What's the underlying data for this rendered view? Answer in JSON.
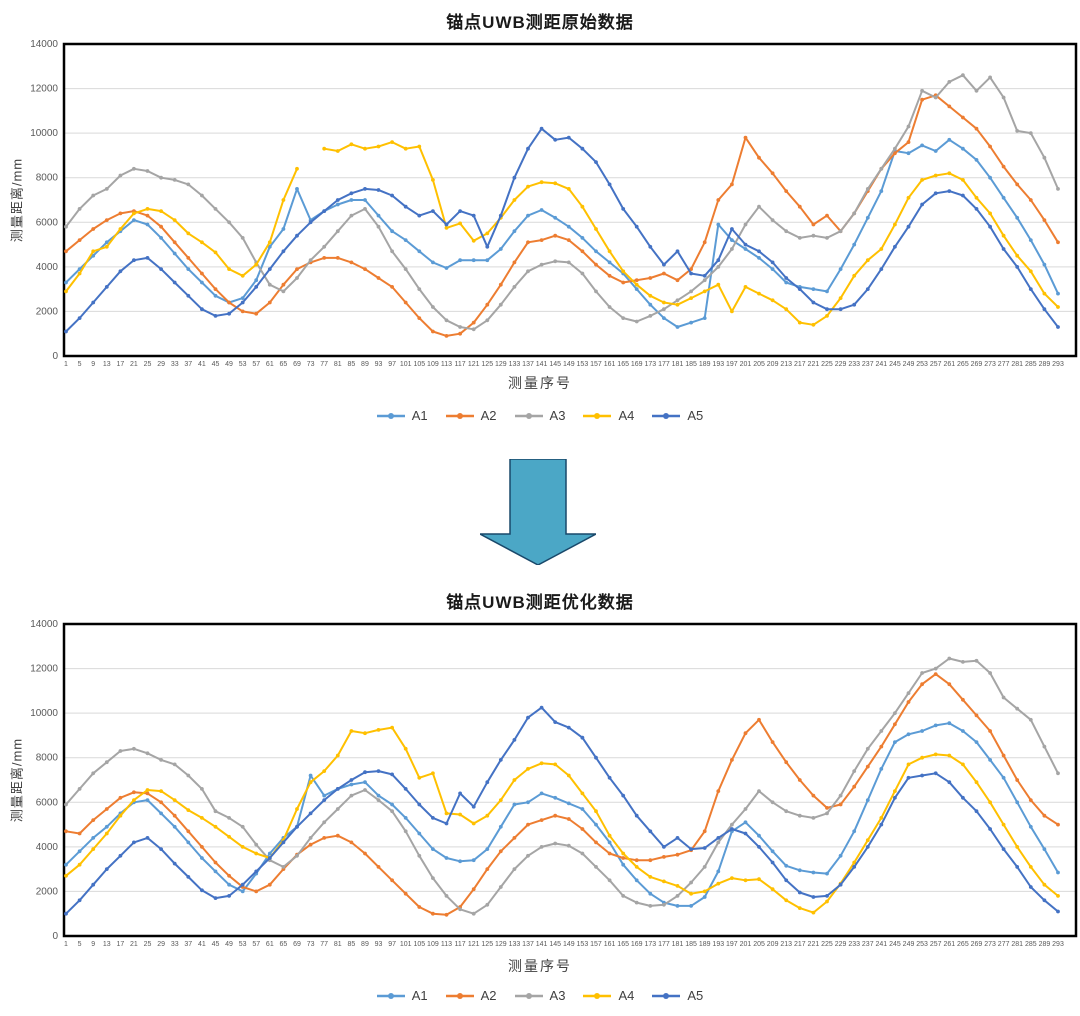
{
  "arrow": {
    "meaning": "down-arrow",
    "fill": "#4BA7C6",
    "stroke": "#19486A"
  },
  "chart_data": [
    {
      "type": "line",
      "title": "锚点UWB测距原始数据",
      "xlabel": "测量序号",
      "ylabel": "测量距离/mm",
      "ylim": [
        0,
        14000
      ],
      "y_ticks": [
        0,
        2000,
        4000,
        6000,
        8000,
        10000,
        12000,
        14000
      ],
      "x_ticks": [
        1,
        5,
        9,
        13,
        17,
        21,
        25,
        29,
        33,
        37,
        41,
        45,
        49,
        53,
        57,
        61,
        65,
        69,
        73,
        77,
        81,
        85,
        89,
        93,
        97,
        101,
        105,
        109,
        113,
        117,
        121,
        125,
        129,
        133,
        137,
        141,
        145,
        149,
        153,
        157,
        161,
        165,
        169,
        173,
        177,
        181,
        185,
        189,
        193,
        197,
        201,
        205,
        209,
        213,
        217,
        221,
        225,
        229,
        233,
        237,
        241,
        245,
        249,
        253,
        257,
        261,
        265,
        269,
        273,
        277,
        281,
        285,
        289,
        293
      ],
      "grid": true,
      "legend_position": "bottom",
      "series": [
        {
          "name": "A1",
          "color": "#5B9BD5",
          "values": [
            3300,
            3900,
            4500,
            5100,
            5600,
            6100,
            5900,
            5300,
            4600,
            3900,
            3300,
            2700,
            2400,
            2600,
            3400,
            4900,
            5700,
            7500,
            6100,
            6500,
            6800,
            7000,
            7000,
            6300,
            5600,
            5200,
            4700,
            4200,
            3950,
            4300,
            4300,
            4300,
            4800,
            5600,
            6300,
            6550,
            6200,
            5800,
            5300,
            4700,
            4200,
            3700,
            3000,
            2300,
            1700,
            1300,
            1500,
            1700,
            5900,
            5200,
            4800,
            4400,
            3900,
            3300,
            3100,
            3000,
            2900,
            3900,
            5000,
            6200,
            7400,
            9200,
            9100,
            9450,
            9200,
            9700,
            9300,
            8800,
            8000,
            7100,
            6200,
            5200,
            4100,
            2800
          ]
        },
        {
          "name": "A2",
          "color": "#ED7D31",
          "values": [
            4700,
            5200,
            5700,
            6100,
            6400,
            6500,
            6300,
            5800,
            5100,
            4400,
            3700,
            3000,
            2400,
            2000,
            1900,
            2400,
            3200,
            3900,
            4200,
            4400,
            4400,
            4200,
            3900,
            3500,
            3100,
            2400,
            1700,
            1100,
            900,
            1000,
            1500,
            2300,
            3200,
            4200,
            5100,
            5200,
            5400,
            5200,
            4700,
            4100,
            3600,
            3300,
            3400,
            3500,
            3700,
            3400,
            3900,
            5100,
            7000,
            7700,
            9800,
            8900,
            8200,
            7400,
            6700,
            5900,
            6300,
            5600,
            6400,
            7400,
            8400,
            9100,
            9600,
            11500,
            11700,
            11200,
            10700,
            10200,
            9400,
            8500,
            7700,
            7000,
            6100,
            5100
          ]
        },
        {
          "name": "A3",
          "color": "#A5A5A5",
          "values": [
            5800,
            6600,
            7200,
            7500,
            8100,
            8400,
            8300,
            8000,
            7900,
            7700,
            7200,
            6600,
            6000,
            5300,
            4200,
            3200,
            2900,
            3500,
            4300,
            4900,
            5600,
            6300,
            6600,
            5800,
            4700,
            3900,
            3000,
            2200,
            1600,
            1300,
            1200,
            1600,
            2300,
            3100,
            3800,
            4100,
            4250,
            4200,
            3700,
            2900,
            2200,
            1700,
            1550,
            1800,
            2100,
            2500,
            2900,
            3400,
            4000,
            4800,
            5900,
            6700,
            6100,
            5600,
            5300,
            5400,
            5300,
            5600,
            6400,
            7500,
            8400,
            9300,
            10300,
            11900,
            11600,
            12300,
            12600,
            11900,
            12500,
            11600,
            10100,
            10000,
            8900,
            7500
          ]
        },
        {
          "name": "A4",
          "color": "#FFC000",
          "values": [
            2900,
            3700,
            4700,
            4900,
            5700,
            6400,
            6600,
            6500,
            6100,
            5500,
            5100,
            4650,
            3900,
            3600,
            4100,
            5100,
            7000,
            8400,
            null,
            9300,
            9200,
            9500,
            9300,
            9400,
            9600,
            9300,
            9400,
            7900,
            5750,
            5950,
            5170,
            5500,
            6200,
            7000,
            7600,
            7800,
            7750,
            7500,
            6700,
            5700,
            4700,
            3800,
            3200,
            2700,
            2400,
            2300,
            2600,
            2900,
            3200,
            2000,
            3100,
            2800,
            2500,
            2100,
            1500,
            1400,
            1800,
            2600,
            3600,
            4300,
            4800,
            5900,
            7100,
            7900,
            8100,
            8200,
            7900,
            7100,
            6400,
            5400,
            4500,
            3800,
            2800,
            2200
          ]
        },
        {
          "name": "A5",
          "color": "#4472C4",
          "values": [
            1100,
            1700,
            2400,
            3100,
            3800,
            4300,
            4400,
            3900,
            3300,
            2700,
            2100,
            1800,
            1900,
            2400,
            3100,
            3900,
            4700,
            5400,
            6000,
            6500,
            7000,
            7300,
            7500,
            7450,
            7200,
            6700,
            6300,
            6500,
            5900,
            6500,
            6300,
            4900,
            6300,
            8000,
            9300,
            10200,
            9700,
            9800,
            9300,
            8700,
            7700,
            6600,
            5800,
            4900,
            4100,
            4700,
            3700,
            3600,
            4300,
            5700,
            5000,
            4700,
            4200,
            3500,
            3000,
            2400,
            2100,
            2100,
            2300,
            3000,
            3900,
            4900,
            5800,
            6800,
            7300,
            7400,
            7200,
            6600,
            5800,
            4800,
            4000,
            3000,
            2100,
            1300
          ]
        }
      ]
    },
    {
      "type": "line",
      "title": "锚点UWB测距优化数据",
      "xlabel": "测量序号",
      "ylabel": "测量距离/mm",
      "ylim": [
        0,
        14000
      ],
      "y_ticks": [
        0,
        2000,
        4000,
        6000,
        8000,
        10000,
        12000,
        14000
      ],
      "x_ticks": [
        1,
        5,
        9,
        13,
        17,
        21,
        25,
        29,
        33,
        37,
        41,
        45,
        49,
        53,
        57,
        61,
        65,
        69,
        73,
        77,
        81,
        85,
        89,
        93,
        97,
        101,
        105,
        109,
        113,
        117,
        121,
        125,
        129,
        133,
        137,
        141,
        145,
        149,
        153,
        157,
        161,
        165,
        169,
        173,
        177,
        181,
        185,
        189,
        193,
        197,
        201,
        205,
        209,
        213,
        217,
        221,
        225,
        229,
        233,
        237,
        241,
        245,
        249,
        253,
        257,
        261,
        265,
        269,
        273,
        277,
        281,
        285,
        289,
        293
      ],
      "grid": true,
      "legend_position": "bottom",
      "series": [
        {
          "name": "A1",
          "color": "#5B9BD5",
          "values": [
            3200,
            3800,
            4400,
            4900,
            5500,
            6000,
            6100,
            5500,
            4900,
            4200,
            3500,
            2900,
            2300,
            2000,
            2800,
            3700,
            4400,
            4900,
            7200,
            6300,
            6600,
            6800,
            6900,
            6300,
            5900,
            5300,
            4600,
            3900,
            3500,
            3350,
            3400,
            3900,
            4900,
            5900,
            6000,
            6400,
            6200,
            5950,
            5700,
            5000,
            4200,
            3200,
            2500,
            1900,
            1500,
            1350,
            1350,
            1750,
            2900,
            4700,
            5100,
            4500,
            3800,
            3150,
            2950,
            2850,
            2800,
            3600,
            4700,
            6100,
            7500,
            8700,
            9050,
            9200,
            9450,
            9550,
            9200,
            8700,
            7900,
            7100,
            6000,
            4900,
            3900,
            2850
          ]
        },
        {
          "name": "A2",
          "color": "#ED7D31",
          "values": [
            4700,
            4600,
            5200,
            5700,
            6200,
            6450,
            6400,
            6000,
            5400,
            4700,
            4000,
            3300,
            2700,
            2200,
            2000,
            2300,
            3000,
            3650,
            4100,
            4400,
            4500,
            4200,
            3700,
            3100,
            2500,
            1900,
            1300,
            1000,
            950,
            1300,
            2100,
            3000,
            3800,
            4400,
            5000,
            5200,
            5400,
            5250,
            4800,
            4200,
            3700,
            3500,
            3400,
            3400,
            3550,
            3650,
            3850,
            4700,
            6500,
            7900,
            9100,
            9700,
            8700,
            7800,
            7000,
            6300,
            5750,
            5900,
            6700,
            7600,
            8500,
            9500,
            10500,
            11300,
            11750,
            11300,
            10600,
            9900,
            9200,
            8100,
            7000,
            6100,
            5400,
            5000
          ]
        },
        {
          "name": "A3",
          "color": "#A5A5A5",
          "values": [
            5900,
            6600,
            7300,
            7800,
            8300,
            8400,
            8200,
            7900,
            7700,
            7200,
            6600,
            5600,
            5300,
            4900,
            4100,
            3400,
            3100,
            3600,
            4400,
            5100,
            5700,
            6300,
            6550,
            6100,
            5600,
            4700,
            3600,
            2600,
            1800,
            1200,
            1000,
            1400,
            2200,
            3000,
            3600,
            4000,
            4150,
            4050,
            3700,
            3100,
            2500,
            1800,
            1500,
            1350,
            1400,
            1800,
            2400,
            3100,
            4200,
            5000,
            5700,
            6500,
            6000,
            5600,
            5400,
            5300,
            5500,
            6300,
            7400,
            8400,
            9200,
            10000,
            10900,
            11800,
            12000,
            12450,
            12300,
            12350,
            11800,
            10700,
            10200,
            9700,
            8500,
            7300
          ]
        },
        {
          "name": "A4",
          "color": "#FFC000",
          "values": [
            2700,
            3200,
            3900,
            4600,
            5400,
            6100,
            6550,
            6500,
            6100,
            5650,
            5300,
            4900,
            4450,
            4000,
            3700,
            3500,
            4300,
            5700,
            6900,
            7400,
            8100,
            9200,
            9100,
            9250,
            9350,
            8400,
            7100,
            7300,
            5500,
            5450,
            5050,
            5400,
            6100,
            7000,
            7500,
            7750,
            7700,
            7200,
            6400,
            5600,
            4500,
            3700,
            3100,
            2650,
            2450,
            2250,
            1900,
            2000,
            2350,
            2600,
            2500,
            2550,
            2100,
            1600,
            1250,
            1050,
            1550,
            2350,
            3300,
            4300,
            5300,
            6500,
            7700,
            8000,
            8150,
            8100,
            7700,
            6900,
            6000,
            5000,
            4000,
            3100,
            2300,
            1800
          ]
        },
        {
          "name": "A5",
          "color": "#4472C4",
          "values": [
            1000,
            1600,
            2300,
            3000,
            3600,
            4200,
            4400,
            3900,
            3250,
            2650,
            2050,
            1700,
            1800,
            2300,
            2900,
            3500,
            4200,
            4900,
            5500,
            6100,
            6600,
            7000,
            7350,
            7400,
            7250,
            6600,
            5900,
            5300,
            5050,
            6400,
            5800,
            6900,
            7900,
            8800,
            9800,
            10250,
            9600,
            9350,
            8900,
            8000,
            7100,
            6300,
            5400,
            4700,
            4000,
            4400,
            3900,
            3950,
            4400,
            4800,
            4600,
            4000,
            3300,
            2500,
            1950,
            1750,
            1800,
            2300,
            3100,
            4000,
            5000,
            6200,
            7100,
            7200,
            7300,
            6900,
            6200,
            5600,
            4800,
            3900,
            3100,
            2200,
            1600,
            1100
          ]
        }
      ]
    }
  ]
}
